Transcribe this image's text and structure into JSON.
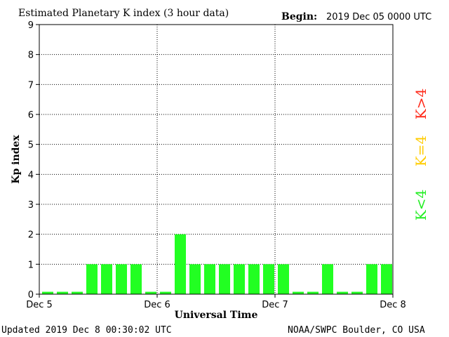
{
  "header": {
    "title": "Estimated Planetary K index (3 hour data)",
    "begin_label": "Begin:",
    "begin_value": "2019 Dec 05 0000 UTC"
  },
  "footer": {
    "updated": "Updated 2019 Dec  8 00:30:02 UTC",
    "source": "NOAA/SWPC Boulder, CO USA"
  },
  "side_legend": [
    {
      "text": "K>4",
      "color": "#ff2a1a"
    },
    {
      "text": "K=4",
      "color": "#ffcc00"
    },
    {
      "text": "K<4",
      "color": "#22ee22"
    }
  ],
  "chart_data": {
    "type": "bar",
    "title": "Estimated Planetary K index (3 hour data)",
    "xlabel": "Universal Time",
    "ylabel": "Kp index",
    "ylim": [
      0,
      9
    ],
    "yticks": [
      0,
      1,
      2,
      3,
      4,
      5,
      6,
      7,
      8,
      9
    ],
    "xticks": [
      "Dec 5",
      "Dec 6",
      "Dec 7",
      "Dec 8"
    ],
    "bar_color": "#22ff22",
    "grid": true,
    "values": [
      0,
      0,
      0,
      1,
      1,
      1,
      1,
      0,
      0,
      2,
      1,
      1,
      1,
      1,
      1,
      1,
      1,
      0,
      0,
      1,
      0,
      0,
      1,
      1
    ]
  }
}
